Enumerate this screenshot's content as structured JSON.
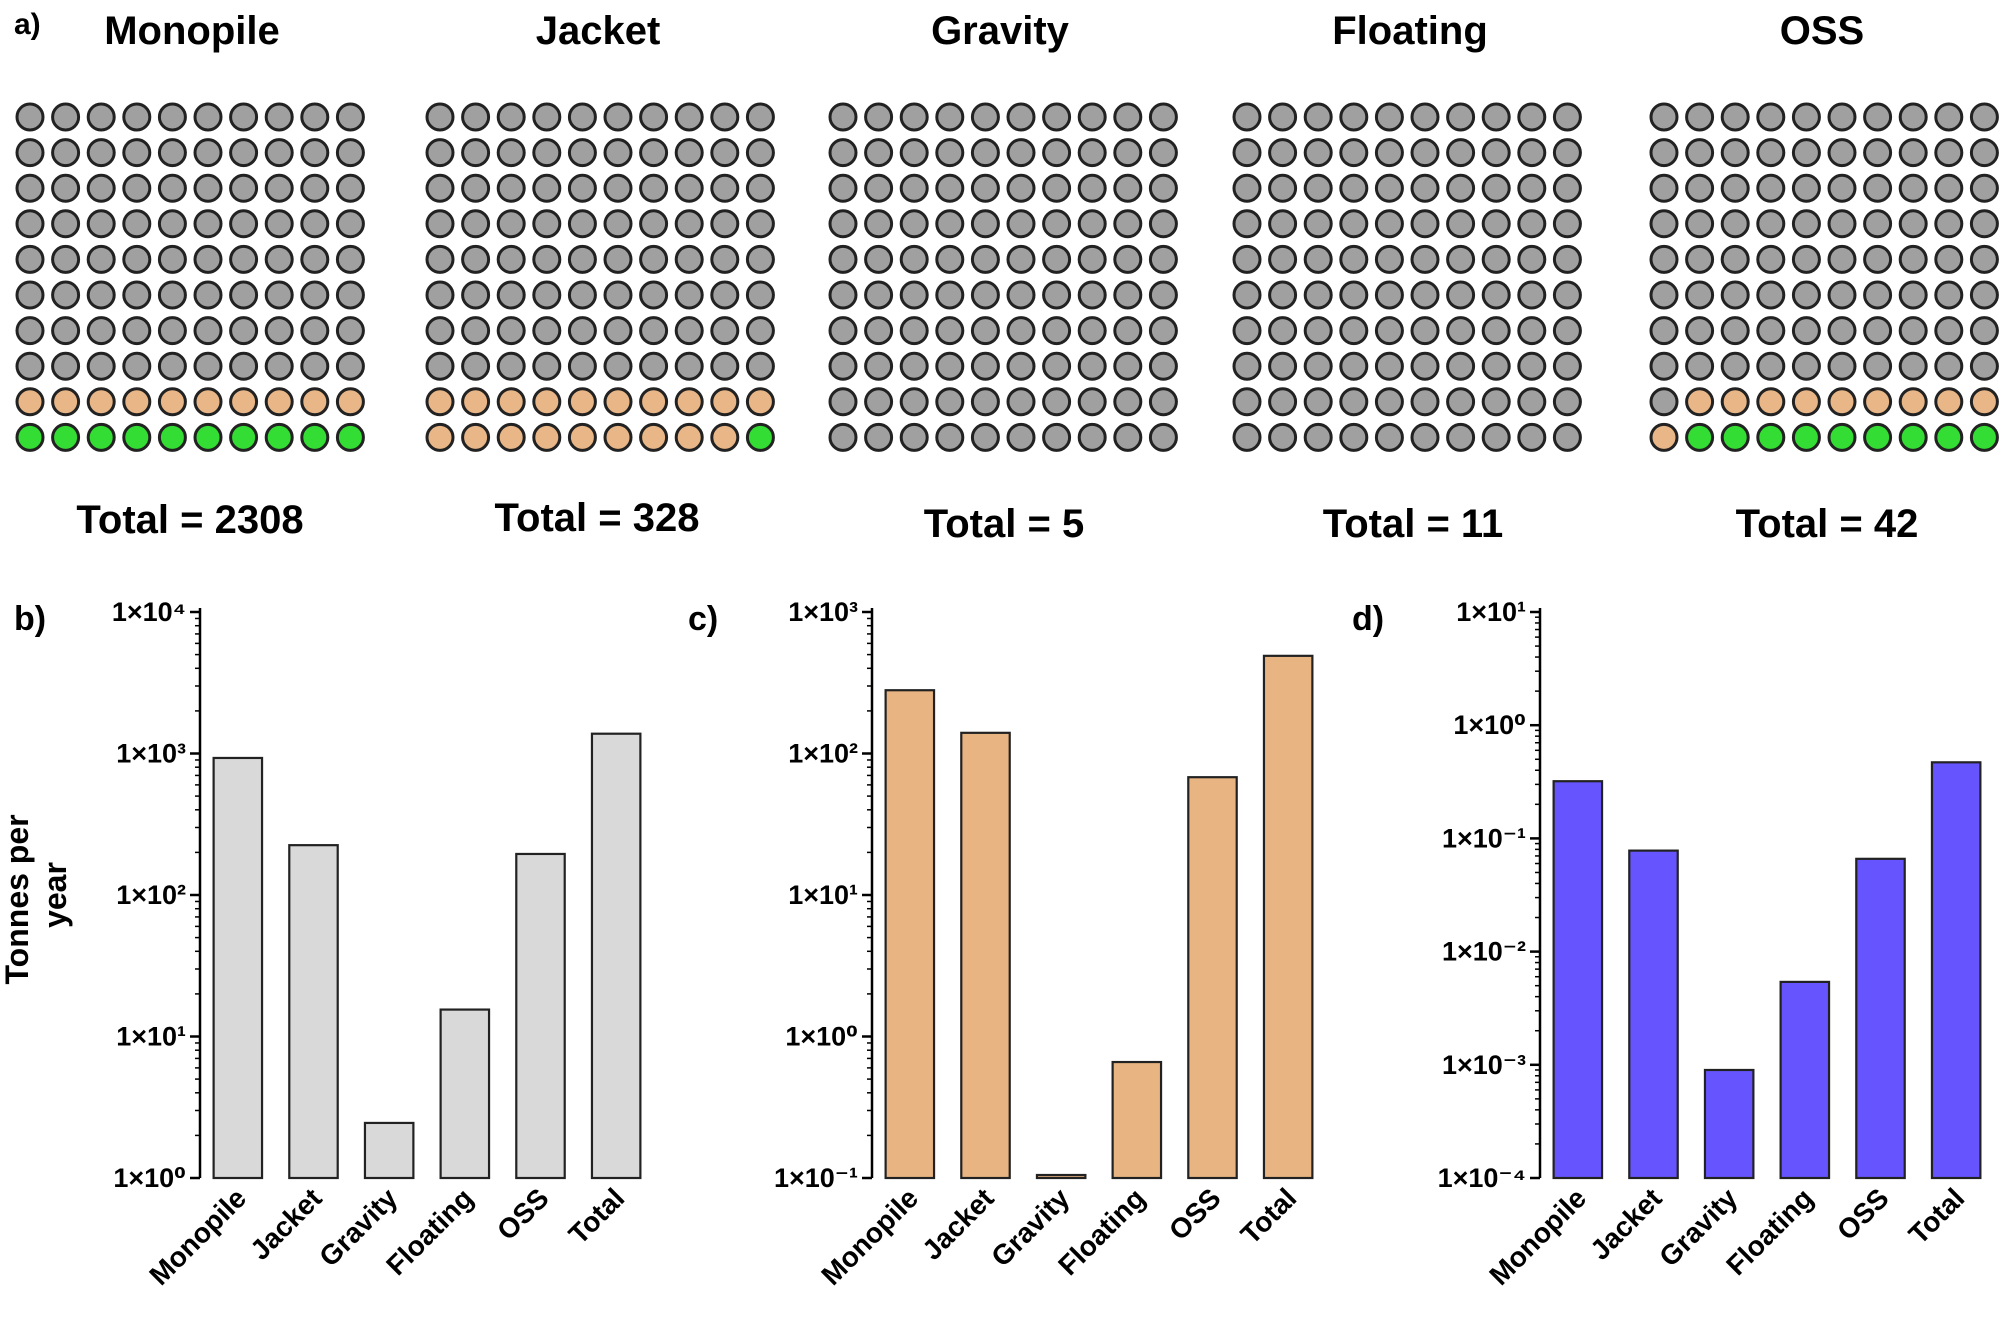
{
  "panel_labels": {
    "a": "a)",
    "b": "b)",
    "c": "c)",
    "d": "d)"
  },
  "colors": {
    "grey": "#a0a0a0",
    "orange": "#e8b687",
    "green": "#33dd33",
    "light_grey_bar": "#d9d9d9",
    "orange_bar": "#e8b582",
    "blue_bar": "#6655ff",
    "outline": "#222222"
  },
  "shared_ylabel": "Tonnes per year",
  "chart_data": [
    {
      "type": "waffle",
      "title": "Monopile",
      "total_label": "Total = 2308",
      "categories": [
        "grey",
        "orange",
        "green"
      ],
      "values": [
        80.6,
        9.4,
        10.0
      ]
    },
    {
      "type": "waffle",
      "title": "Jacket",
      "total_label": "Total = 328",
      "categories": [
        "grey",
        "orange",
        "green"
      ],
      "values": [
        80.7,
        18.9,
        0.4
      ]
    },
    {
      "type": "waffle",
      "title": "Gravity",
      "total_label": "Total = 5",
      "categories": [
        "grey",
        "orange",
        "green"
      ],
      "values": [
        100,
        0,
        0
      ]
    },
    {
      "type": "waffle",
      "title": "Floating",
      "total_label": "Total = 11",
      "categories": [
        "grey",
        "orange",
        "green"
      ],
      "values": [
        100,
        0,
        0
      ]
    },
    {
      "type": "waffle",
      "title": "OSS",
      "total_label": "Total = 42",
      "categories": [
        "grey",
        "orange",
        "green"
      ],
      "values": [
        81,
        10,
        9
      ]
    },
    {
      "type": "bar",
      "scale": "log",
      "categories": [
        "Monopile",
        "Jacket",
        "Gravity",
        "Floating",
        "OSS",
        "Total"
      ],
      "values": [
        930,
        225,
        2.45,
        15.5,
        195,
        1380
      ],
      "ylim": [
        1,
        10000
      ],
      "ytick_labels": [
        "1×10⁰",
        "1×10¹",
        "1×10²",
        "1×10³",
        "1×10⁴"
      ],
      "ylabel": "Tonnes per year",
      "color": "#d9d9d9"
    },
    {
      "type": "bar",
      "scale": "log",
      "categories": [
        "Monopile",
        "Jacket",
        "Gravity",
        "Floating",
        "OSS",
        "Total"
      ],
      "values": [
        280,
        140,
        0.105,
        0.66,
        68,
        490
      ],
      "ylim": [
        0.1,
        1000
      ],
      "ytick_labels": [
        "1×10⁻¹",
        "1×10⁰",
        "1×10¹",
        "1×10²",
        "1×10³"
      ],
      "color": "#e8b582"
    },
    {
      "type": "bar",
      "scale": "log",
      "categories": [
        "Monopile",
        "Jacket",
        "Gravity",
        "Floating",
        "OSS",
        "Total"
      ],
      "values": [
        0.32,
        0.078,
        0.0009,
        0.0054,
        0.066,
        0.47
      ],
      "ylim": [
        0.0001,
        10
      ],
      "ytick_labels": [
        "1×10⁻⁴",
        "1×10⁻³",
        "1×10⁻²",
        "1×10⁻¹",
        "1×10⁰",
        "1×10¹"
      ],
      "color": "#6655ff"
    }
  ]
}
